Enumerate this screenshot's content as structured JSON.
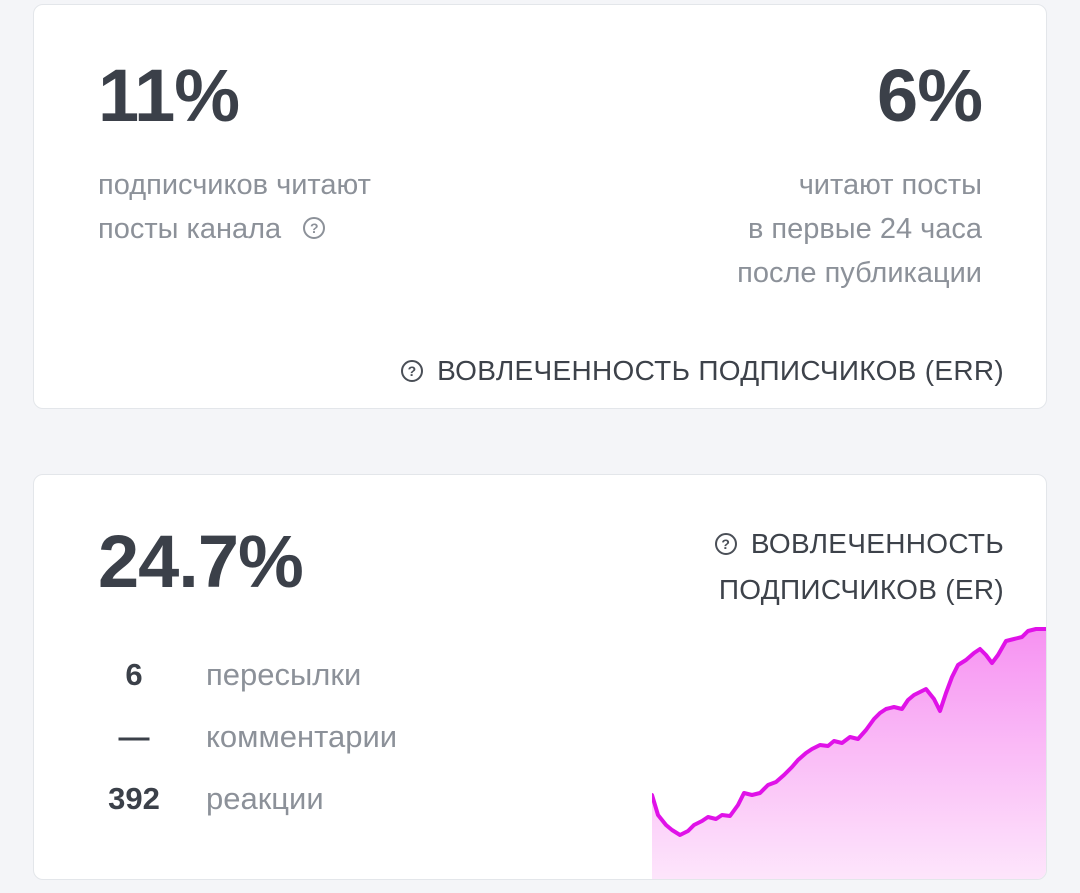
{
  "err_card": {
    "left_value": "11%",
    "left_desc_line1": "подписчиков читают",
    "left_desc_line2": "посты канала",
    "right_value": "6%",
    "right_desc_line1": "читают посты",
    "right_desc_line2": "в первые 24 часа",
    "right_desc_line3": "после публикации",
    "help_glyph": "?",
    "footer_label": "ВОВЛЕЧЕННОСТЬ ПОДПИСЧИКОВ (ERR)"
  },
  "er_card": {
    "value": "24.7%",
    "title_line1": "ВОВЛЕЧЕННОСТЬ",
    "title_line2": "ПОДПИСЧИКОВ (ER)",
    "help_glyph": "?",
    "stats": [
      {
        "value": "6",
        "label": "пересылки"
      },
      {
        "value": "—",
        "label": "комментарии"
      },
      {
        "value": "392",
        "label": "реакции"
      }
    ],
    "sparkline_color": "#e012e8",
    "sparkline_fill": "#fbb8f7"
  }
}
